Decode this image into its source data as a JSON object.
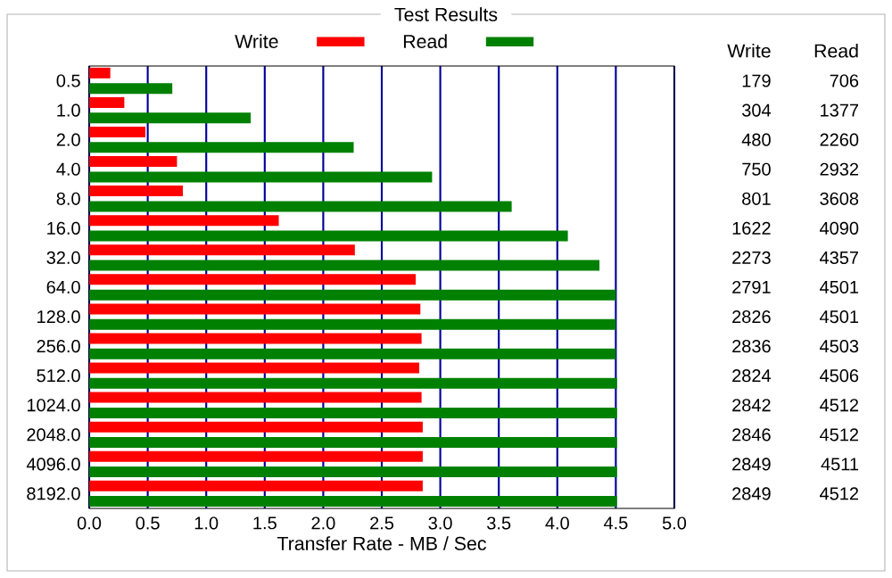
{
  "chart_data": {
    "type": "bar",
    "orientation": "horizontal",
    "title": "Test Results",
    "xlabel": "Transfer Rate - MB / Sec",
    "categories": [
      "0.5",
      "1.0",
      "2.0",
      "4.0",
      "8.0",
      "16.0",
      "32.0",
      "64.0",
      "128.0",
      "256.0",
      "512.0",
      "1024.0",
      "2048.0",
      "4096.0",
      "8192.0"
    ],
    "series": [
      {
        "name": "Write",
        "color": "#ff0000",
        "values": [
          0.18,
          0.3,
          0.48,
          0.75,
          0.8,
          1.62,
          2.27,
          2.79,
          2.83,
          2.84,
          2.82,
          2.84,
          2.85,
          2.85,
          2.85
        ]
      },
      {
        "name": "Read",
        "color": "#008000",
        "values": [
          0.71,
          1.38,
          2.26,
          2.93,
          3.61,
          4.09,
          4.36,
          4.5,
          4.5,
          4.5,
          4.51,
          4.51,
          4.51,
          4.51,
          4.51
        ]
      }
    ],
    "annotations": [
      "Write",
      "Read",
      "179",
      "706",
      "304",
      "1377",
      "480",
      "2260",
      "750",
      "2932",
      "801",
      "3608",
      "1622",
      "4090",
      "2273",
      "4357",
      "2791",
      "4501",
      "2826",
      "4501",
      "2836",
      "4503",
      "2824",
      "4506",
      "2842",
      "4512",
      "2846",
      "4512",
      "2849",
      "4511",
      "2849",
      "4512"
    ],
    "xlim": [
      0,
      5
    ],
    "xticks": [
      {
        "value": 0,
        "label": "0.0"
      },
      0.5,
      {
        "value": 1,
        "label": "1.0"
      },
      1.5,
      {
        "value": 2,
        "label": "2.0"
      },
      2.5,
      {
        "value": 3,
        "label": "3.0"
      },
      3.5,
      {
        "value": 4,
        "label": "4.0"
      },
      4.5,
      {
        "value": 5,
        "label": "5.0"
      }
    ],
    "grid": "x",
    "legend": "top"
  }
}
